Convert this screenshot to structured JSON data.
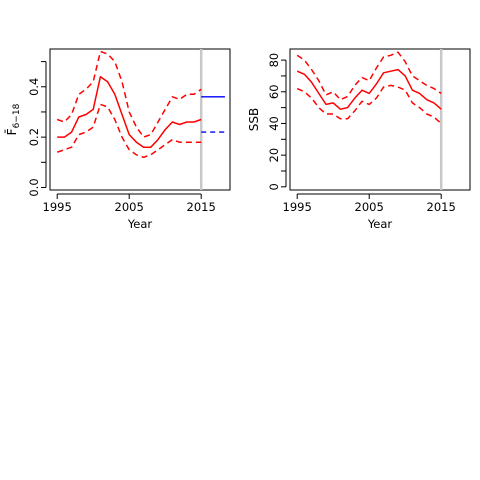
{
  "colors": {
    "estimate": "#ff0000",
    "reference": "#0000ff",
    "cutoff": "#c8c8c8",
    "axis": "#000000"
  },
  "chart_data": [
    {
      "type": "line",
      "xlabel": "Year",
      "ylabel": "F̄",
      "ylabel_sub": "6−18",
      "xlim": [
        1994,
        2019
      ],
      "ylim": [
        -0.01,
        0.55
      ],
      "xticks": [
        1995,
        2005,
        2015
      ],
      "yticks": [
        0.0,
        0.2,
        0.4
      ],
      "ytick_minor": [
        0.1,
        0.3,
        0.5
      ],
      "cutoff_year": 2015,
      "x": [
        1995,
        1996,
        1997,
        1998,
        1999,
        2000,
        2001,
        2002,
        2003,
        2004,
        2005,
        2006,
        2007,
        2008,
        2009,
        2010,
        2011,
        2012,
        2013,
        2014,
        2015
      ],
      "series": [
        {
          "role": "estimate",
          "style": "solid",
          "values": [
            0.2,
            0.2,
            0.22,
            0.28,
            0.29,
            0.31,
            0.44,
            0.42,
            0.37,
            0.29,
            0.21,
            0.18,
            0.16,
            0.16,
            0.19,
            0.23,
            0.26,
            0.25,
            0.26,
            0.26,
            0.27
          ]
        },
        {
          "role": "upper",
          "style": "dashed",
          "values": [
            0.27,
            0.26,
            0.29,
            0.37,
            0.39,
            0.42,
            0.54,
            0.53,
            0.5,
            0.42,
            0.3,
            0.24,
            0.2,
            0.21,
            0.26,
            0.31,
            0.36,
            0.35,
            0.37,
            0.37,
            0.39
          ]
        },
        {
          "role": "lower",
          "style": "dashed",
          "values": [
            0.14,
            0.15,
            0.16,
            0.21,
            0.22,
            0.24,
            0.33,
            0.32,
            0.27,
            0.2,
            0.15,
            0.13,
            0.12,
            0.13,
            0.15,
            0.17,
            0.19,
            0.18,
            0.18,
            0.18,
            0.18
          ]
        }
      ],
      "reference_lines": [
        {
          "style": "solid",
          "y": 0.36,
          "x": [
            2015,
            2018.3
          ]
        },
        {
          "style": "dashed",
          "y": 0.22,
          "x": [
            2015,
            2018.3
          ]
        }
      ]
    },
    {
      "type": "line",
      "xlabel": "Year",
      "ylabel": "SSB",
      "xlim": [
        1994,
        2019
      ],
      "ylim": [
        -2,
        87
      ],
      "xticks": [
        1995,
        2005,
        2015
      ],
      "yticks": [
        0,
        20,
        40,
        60,
        80
      ],
      "ytick_minor": [
        10,
        30,
        50,
        70
      ],
      "cutoff_year": 2015,
      "x": [
        1995,
        1996,
        1997,
        1998,
        1999,
        2000,
        2001,
        2002,
        2003,
        2004,
        2005,
        2006,
        2007,
        2008,
        2009,
        2010,
        2011,
        2012,
        2013,
        2014,
        2015
      ],
      "series": [
        {
          "role": "estimate",
          "style": "solid",
          "values": [
            73,
            71,
            66,
            59,
            52,
            53,
            49,
            50,
            56,
            61,
            59,
            65,
            72,
            73,
            74,
            70,
            61,
            59,
            55,
            53,
            49
          ]
        },
        {
          "role": "upper",
          "style": "dashed",
          "values": [
            83,
            80,
            74,
            67,
            58,
            60,
            55,
            57,
            64,
            69,
            67,
            75,
            82,
            83,
            85,
            79,
            70,
            67,
            64,
            62,
            59
          ]
        },
        {
          "role": "lower",
          "style": "dashed",
          "values": [
            62,
            60,
            56,
            50,
            46,
            46,
            43,
            43,
            48,
            54,
            52,
            56,
            63,
            64,
            63,
            61,
            53,
            50,
            46,
            44,
            40
          ]
        }
      ],
      "reference_lines": []
    }
  ]
}
